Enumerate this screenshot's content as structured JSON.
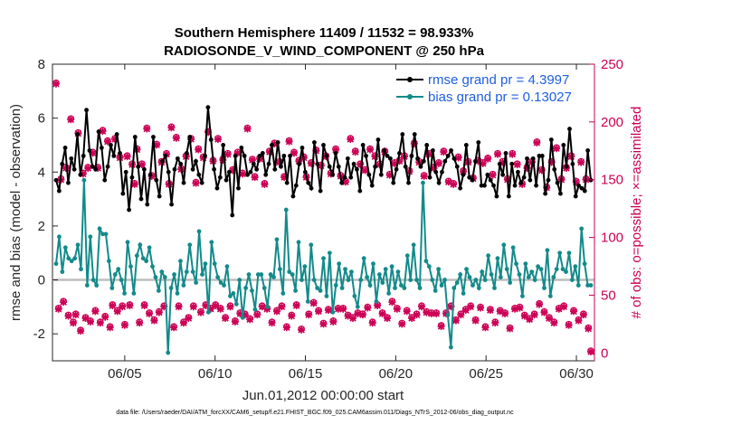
{
  "chart_data": {
    "type": "line",
    "title": "Southern Hemisphere 11409 / 11532 = 98.933%",
    "subtitle": "RADIOSONDE_V_WIND_COMPONENT @ 250 hPa",
    "xlabel": "Jun.01,2012 00:00:00 start",
    "ylabel": "rmse and bias (model - observation)",
    "ylabel_right": "# of obs: o=possible; ×=assimilated",
    "xlim": [
      1.0,
      31.0
    ],
    "ylim": [
      -3,
      8
    ],
    "ylim_right": [
      -6.8,
      250
    ],
    "x_ticks": [
      5,
      10,
      15,
      20,
      25,
      30
    ],
    "x_tick_labels": [
      "06/05",
      "06/10",
      "06/15",
      "06/20",
      "06/25",
      "06/30"
    ],
    "y_ticks": [
      -2,
      0,
      2,
      4,
      6,
      8
    ],
    "y_tick_labels": [
      "-2",
      "0",
      "2",
      "4",
      "6",
      "8"
    ],
    "y_right_ticks": [
      0,
      50,
      100,
      150,
      200,
      250
    ],
    "y_right_tick_labels": [
      "0",
      "50",
      "100",
      "150",
      "200",
      "250"
    ],
    "zero_line": 0,
    "footnote": "data file: /Users/raeder/DAI/ATM_forcXX/CAM6_setup/f.e21.FHIST_BGC.f09_025.CAM6assim.011/Diags_NTrS_2012-06/obs_diag_output.nc",
    "series": [
      {
        "name": "rmse grand pr = 4.3997",
        "axis": "left",
        "color": "#000000",
        "values": [
          3.7,
          3.3,
          4.3,
          4.9,
          3.6,
          4.5,
          4.1,
          5.4,
          3.9,
          4.6,
          6.3,
          4.8,
          4.2,
          4.1,
          5.5,
          4.9,
          3.7,
          4.2,
          5.0,
          4.6,
          5.4,
          4.7,
          3.2,
          4.0,
          2.6,
          3.8,
          5.3,
          4.2,
          3.0,
          4.1,
          2.8,
          3.9,
          5.3,
          3.7,
          3.1,
          4.4,
          4.6,
          4.0,
          2.8,
          4.1,
          4.5,
          4.3,
          3.6,
          4.7,
          5.3,
          4.1,
          4.4,
          3.9,
          3.6,
          4.6,
          6.4,
          5.2,
          4.1,
          3.4,
          3.8,
          5.0,
          3.7,
          4.0,
          2.4,
          4.6,
          3.4,
          4.9,
          4.6,
          3.9,
          4.0,
          4.3,
          4.1,
          4.6,
          4.7,
          3.9,
          4.3,
          5.0,
          4.1,
          5.1,
          4.2,
          4.6,
          3.6,
          4.6,
          3.1,
          3.5,
          4.3,
          4.9,
          4.0,
          3.6,
          3.4,
          5.1,
          4.3,
          3.3,
          5.0,
          4.6,
          4.2,
          3.9,
          4.7,
          4.2,
          3.6,
          3.8,
          4.5,
          3.8,
          4.3,
          4.1,
          3.3,
          5.0,
          4.6,
          3.9,
          3.5,
          4.2,
          5.2,
          3.9,
          4.8,
          4.6,
          4.5,
          3.6,
          4.1,
          4.7,
          5.4,
          4.2,
          3.6,
          4.6,
          5.4,
          4.5,
          4.2,
          4.4,
          5.0,
          3.8,
          4.8,
          4.0,
          3.6,
          4.0,
          4.4,
          4.6,
          4.8,
          4.5,
          4.2,
          3.4,
          3.9,
          5.0,
          3.8,
          3.7,
          4.4,
          5.1,
          3.5,
          3.5,
          3.9,
          3.7,
          3.5,
          3.1,
          4.3,
          3.9,
          4.7,
          3.1,
          4.3,
          3.5,
          4.0,
          3.6,
          3.8,
          4.5,
          3.7,
          4.5,
          3.5,
          4.6,
          4.6,
          3.2,
          3.7,
          5.2,
          4.1,
          3.6,
          3.2,
          5.0,
          4.2,
          5.6,
          4.3,
          3.1,
          3.5,
          3.4,
          3.3,
          4.8,
          3.7
        ]
      },
      {
        "name": "bias grand pr = 0.13027",
        "axis": "left",
        "color": "#138a8a",
        "values": [
          0.6,
          1.6,
          0.3,
          1.2,
          0.8,
          0.7,
          0.8,
          1.3,
          0.4,
          3.7,
          -0.2,
          1.6,
          0.0,
          -0.2,
          1.9,
          1.7,
          1.7,
          0.7,
          -0.3,
          0.2,
          0.4,
          0.0,
          -0.5,
          1.4,
          0.5,
          -0.5,
          0.9,
          1.3,
          0.8,
          0.7,
          1.2,
          0.5,
          0.1,
          -0.4,
          0.3,
          0.1,
          -2.7,
          -0.3,
          0.2,
          -0.5,
          0.7,
          -0.2,
          0.3,
          1.3,
          0.3,
          -0.1,
          1.8,
          0.2,
          0.6,
          -1.2,
          1.4,
          0.6,
          0.1,
          -0.1,
          -0.2,
          0.5,
          -0.6,
          -0.5,
          -0.9,
          0.0,
          -1.4,
          -0.3,
          0.2,
          -0.4,
          -1.1,
          0.2,
          0.2,
          -0.3,
          -1.0,
          0.2,
          0.1,
          1.5,
          0.4,
          -0.5,
          2.6,
          0.3,
          0.2,
          -0.4,
          1.4,
          0.0,
          0.5,
          -0.8,
          1.3,
          0.0,
          -0.3,
          -0.4,
          0.8,
          -0.6,
          1.0,
          -1.2,
          -0.2,
          0.6,
          -0.3,
          0.4,
          0.0,
          0.3,
          -0.6,
          -1.0,
          0.0,
          0.8,
          0.1,
          -0.2,
          0.6,
          -0.8,
          0.2,
          -0.1,
          0.4,
          -0.5,
          0.5,
          -0.3,
          0.3,
          -0.2,
          -0.3,
          0.9,
          0.0,
          1.3,
          0.0,
          -0.3,
          3.6,
          0.7,
          0.5,
          0.0,
          -0.4,
          0.4,
          -0.2,
          0.0,
          -1.3,
          -2.5,
          -0.3,
          -0.1,
          0.2,
          -0.5,
          0.4,
          0.1,
          -0.2,
          0.0,
          -0.3,
          0.3,
          0.0,
          0.9,
          0.2,
          -0.3,
          0.8,
          0.1,
          1.3,
          0.4,
          -0.1,
          1.2,
          0.6,
          0.2,
          -0.6,
          0.6,
          0.1,
          0.3,
          0.0,
          0.5,
          0.4,
          -0.3,
          1.1,
          -0.6,
          0.1,
          0.4,
          1.0,
          0.4,
          0.3,
          1.0,
          0.0,
          0.5,
          -0.2,
          1.9,
          0.6,
          -0.2,
          -0.2
        ]
      },
      {
        "name": "obs possible",
        "axis": "right",
        "color": "#cc0055",
        "marker": "o",
        "values": [
          233,
          38,
          150,
          44,
          160,
          32,
          202,
          26,
          33,
          190,
          19,
          155,
          30,
          160,
          27,
          173,
          36,
          160,
          26,
          192,
          31,
          183,
          22,
          41,
          185,
          36,
          169,
          40,
          24,
          170,
          41,
          163,
          146,
          176,
          26,
          163,
          41,
          194,
          34,
          153,
          28,
          180,
          35,
          165,
          40,
          172,
          146,
          195,
          22,
          186,
          40,
          159,
          26,
          170,
          30,
          185,
          40,
          147,
          176,
          35,
          169,
          41,
          191,
          38,
          166,
          41,
          185,
          38,
          167,
          30,
          172,
          40,
          158,
          27,
          173,
          34,
          155,
          33,
          194,
          29,
          167,
          152,
          33,
          168,
          40,
          146,
          38,
          174,
          26,
          181,
          36,
          165,
          40,
          152,
          22,
          183,
          32,
          173,
          41,
          166,
          20,
          169,
          152,
          33,
          164,
          43,
          175,
          36,
          162,
          25,
          170,
          37,
          155,
          27,
          176,
          38,
          153,
          38,
          148,
          32,
          185,
          30,
          174,
          34,
          163,
          33,
          158,
          39,
          176,
          26,
          170,
          41,
          163,
          34,
          174,
          30,
          154,
          44,
          164,
          38,
          166,
          25,
          170,
          36,
          157,
          30,
          181,
          33,
          165,
          40,
          153,
          35,
          172,
          34,
          160,
          34,
          164,
          23,
          174,
          34,
          148,
          40,
          146,
          28,
          169,
          33,
          157,
          37,
          165,
          40,
          151,
          28,
          166,
          39,
          164,
          22,
          168,
          37,
          154,
          26,
          172,
          36,
          165,
          34,
          150,
          21,
          172,
          38,
          163,
          39,
          146,
          32,
          160,
          29,
          165,
          33,
          182,
          42,
          158,
          35,
          143,
          30,
          165,
          26,
          177,
          38,
          150,
          40,
          160,
          24,
          170,
          36,
          148,
          28,
          165,
          33,
          150,
          21,
          1
        ]
      },
      {
        "name": "obs assimilated",
        "axis": "right",
        "color": "#cc0055",
        "marker": "x",
        "values": [
          233,
          38,
          150,
          44,
          160,
          32,
          202,
          26,
          33,
          190,
          19,
          155,
          30,
          160,
          27,
          173,
          36,
          160,
          26,
          192,
          31,
          183,
          22,
          41,
          185,
          36,
          169,
          40,
          24,
          170,
          41,
          163,
          146,
          176,
          26,
          163,
          41,
          194,
          34,
          153,
          28,
          180,
          35,
          165,
          40,
          172,
          146,
          195,
          22,
          186,
          40,
          159,
          26,
          170,
          30,
          185,
          40,
          147,
          176,
          35,
          169,
          41,
          191,
          38,
          166,
          41,
          185,
          38,
          167,
          30,
          172,
          40,
          158,
          27,
          173,
          34,
          155,
          33,
          194,
          29,
          167,
          152,
          33,
          168,
          40,
          146,
          38,
          174,
          26,
          181,
          36,
          165,
          40,
          152,
          22,
          183,
          32,
          173,
          41,
          166,
          20,
          169,
          152,
          33,
          164,
          43,
          175,
          36,
          162,
          25,
          170,
          37,
          155,
          27,
          176,
          38,
          153,
          38,
          148,
          32,
          185,
          30,
          174,
          34,
          163,
          33,
          158,
          39,
          176,
          26,
          170,
          41,
          163,
          34,
          174,
          30,
          154,
          44,
          164,
          38,
          166,
          25,
          170,
          36,
          157,
          30,
          181,
          33,
          165,
          40,
          153,
          35,
          172,
          34,
          160,
          34,
          164,
          23,
          174,
          34,
          148,
          40,
          146,
          28,
          169,
          33,
          157,
          37,
          165,
          40,
          151,
          28,
          166,
          39,
          164,
          22,
          168,
          37,
          154,
          26,
          172,
          36,
          165,
          34,
          150,
          21,
          172,
          38,
          163,
          39,
          146,
          32,
          160,
          29,
          165,
          33,
          182,
          42,
          158,
          35,
          143,
          30,
          165,
          26,
          177,
          38,
          150,
          40,
          160,
          24,
          170,
          36,
          148,
          28,
          165,
          33,
          150,
          21,
          1
        ]
      }
    ],
    "legend": {
      "position": "top-right",
      "entries": [
        "rmse grand pr = 4.3997",
        "bias grand pr = 0.13027"
      ]
    }
  }
}
